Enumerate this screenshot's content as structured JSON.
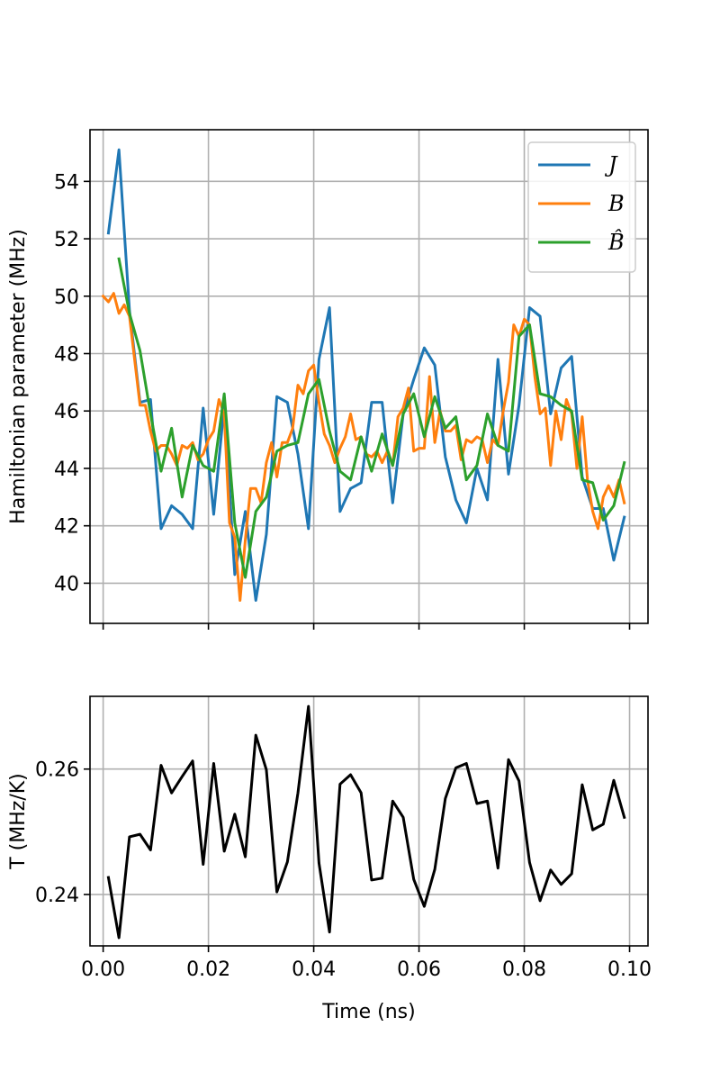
{
  "chart_data": [
    {
      "type": "line",
      "title": "",
      "xlabel": "",
      "ylabel": "Hamiltonian parameter (MHz)",
      "xlim": [
        -0.0025,
        0.1035
      ],
      "ylim": [
        38.6,
        55.8
      ],
      "xticks": [
        0.0,
        0.02,
        0.04,
        0.06,
        0.08,
        0.1
      ],
      "yticks": [
        40,
        42,
        44,
        46,
        48,
        50,
        52,
        54
      ],
      "ytick_labels": [
        "40",
        "42",
        "44",
        "46",
        "48",
        "50",
        "52",
        "54"
      ],
      "grid": true,
      "legend": {
        "position": "top-right",
        "labels": [
          "J",
          "B",
          "B̂"
        ]
      },
      "series": [
        {
          "name": "J",
          "color": "#1f77b4",
          "x": [
            0.001,
            0.003,
            0.005,
            0.007,
            0.009,
            0.011,
            0.013,
            0.015,
            0.017,
            0.019,
            0.021,
            0.023,
            0.025,
            0.027,
            0.029,
            0.031,
            0.033,
            0.035,
            0.037,
            0.039,
            0.041,
            0.043,
            0.045,
            0.047,
            0.049,
            0.051,
            0.053,
            0.055,
            0.057,
            0.059,
            0.061,
            0.063,
            0.065,
            0.067,
            0.069,
            0.071,
            0.073,
            0.075,
            0.077,
            0.079,
            0.081,
            0.083,
            0.085,
            0.087,
            0.089,
            0.091,
            0.093,
            0.095,
            0.097,
            0.099
          ],
          "values": [
            52.2,
            55.1,
            49.5,
            46.3,
            46.4,
            41.9,
            42.7,
            42.4,
            41.9,
            46.1,
            42.4,
            46.2,
            40.3,
            42.5,
            39.4,
            41.7,
            46.5,
            46.3,
            44.5,
            41.9,
            47.8,
            49.6,
            42.5,
            43.3,
            43.5,
            46.3,
            46.3,
            42.8,
            45.9,
            47.1,
            48.2,
            47.6,
            44.4,
            42.9,
            42.1,
            44.0,
            42.9,
            47.8,
            43.8,
            46.2,
            49.6,
            49.3,
            45.9,
            47.5,
            47.9,
            43.7,
            42.6,
            42.6,
            40.8,
            42.3
          ]
        },
        {
          "name": "B",
          "color": "#ff7f0e",
          "x": [
            0.0,
            0.001,
            0.002,
            0.003,
            0.004,
            0.005,
            0.007,
            0.008,
            0.009,
            0.01,
            0.011,
            0.012,
            0.013,
            0.014,
            0.015,
            0.016,
            0.017,
            0.018,
            0.019,
            0.02,
            0.021,
            0.022,
            0.023,
            0.024,
            0.025,
            0.026,
            0.027,
            0.028,
            0.029,
            0.03,
            0.031,
            0.032,
            0.033,
            0.034,
            0.035,
            0.036,
            0.037,
            0.038,
            0.039,
            0.04,
            0.041,
            0.042,
            0.043,
            0.044,
            0.045,
            0.046,
            0.047,
            0.048,
            0.049,
            0.05,
            0.051,
            0.052,
            0.053,
            0.054,
            0.055,
            0.056,
            0.057,
            0.058,
            0.059,
            0.06,
            0.061,
            0.062,
            0.063,
            0.064,
            0.065,
            0.066,
            0.067,
            0.068,
            0.069,
            0.07,
            0.071,
            0.072,
            0.073,
            0.074,
            0.075,
            0.076,
            0.077,
            0.078,
            0.079,
            0.08,
            0.081,
            0.082,
            0.083,
            0.084,
            0.085,
            0.086,
            0.087,
            0.088,
            0.089,
            0.09,
            0.091,
            0.092,
            0.093,
            0.094,
            0.095,
            0.096,
            0.097,
            0.098,
            0.099
          ],
          "values": [
            50.0,
            49.8,
            50.1,
            49.4,
            49.7,
            49.3,
            46.2,
            46.2,
            45.3,
            44.6,
            44.8,
            44.8,
            44.5,
            44.1,
            44.8,
            44.7,
            44.9,
            44.3,
            44.5,
            45.0,
            45.3,
            46.4,
            45.9,
            42.1,
            41.6,
            39.4,
            41.5,
            43.3,
            43.3,
            42.8,
            44.2,
            44.9,
            43.7,
            44.9,
            44.9,
            45.4,
            46.9,
            46.6,
            47.4,
            47.6,
            46.3,
            45.2,
            44.8,
            44.2,
            44.7,
            45.1,
            45.9,
            45.0,
            45.1,
            44.5,
            44.4,
            44.6,
            44.2,
            44.6,
            44.1,
            45.8,
            46.1,
            46.8,
            44.6,
            44.7,
            44.7,
            47.2,
            44.9,
            46.0,
            45.3,
            45.3,
            45.5,
            44.3,
            45.0,
            44.9,
            45.1,
            45.0,
            44.2,
            45.0,
            44.8,
            46.0,
            47.0,
            49.0,
            48.6,
            49.2,
            49.0,
            47.2,
            45.9,
            46.1,
            44.1,
            46.0,
            45.0,
            46.4,
            45.9,
            44.0,
            45.8,
            43.6,
            42.5,
            41.9,
            43.0,
            43.4,
            43.0,
            43.6,
            42.8
          ]
        },
        {
          "name": "B̂",
          "color": "#2ca02c",
          "x": [
            0.003,
            0.005,
            0.007,
            0.009,
            0.011,
            0.013,
            0.015,
            0.017,
            0.019,
            0.021,
            0.023,
            0.025,
            0.027,
            0.029,
            0.031,
            0.033,
            0.035,
            0.037,
            0.039,
            0.041,
            0.043,
            0.045,
            0.047,
            0.049,
            0.051,
            0.053,
            0.055,
            0.057,
            0.059,
            0.061,
            0.063,
            0.065,
            0.067,
            0.069,
            0.071,
            0.073,
            0.075,
            0.077,
            0.079,
            0.081,
            0.083,
            0.085,
            0.087,
            0.089,
            0.091,
            0.093,
            0.095,
            0.097,
            0.099
          ],
          "values": [
            51.3,
            49.4,
            48.1,
            45.9,
            43.9,
            45.4,
            43.0,
            44.8,
            44.1,
            43.9,
            46.6,
            42.1,
            40.2,
            42.5,
            43.0,
            44.6,
            44.8,
            44.9,
            46.6,
            47.1,
            45.3,
            43.9,
            43.6,
            45.1,
            43.9,
            45.2,
            44.1,
            45.9,
            46.6,
            45.1,
            46.5,
            45.4,
            45.8,
            43.6,
            44.1,
            45.9,
            44.8,
            44.6,
            48.6,
            49.0,
            46.6,
            46.5,
            46.2,
            46.0,
            43.6,
            43.5,
            42.2,
            42.7,
            44.2
          ]
        }
      ]
    },
    {
      "type": "line",
      "title": "",
      "xlabel": "Time (ns)",
      "ylabel": "T (MHz/K)",
      "xlim": [
        -0.0025,
        0.1035
      ],
      "ylim": [
        0.2318,
        0.2716
      ],
      "xticks": [
        0.0,
        0.02,
        0.04,
        0.06,
        0.08,
        0.1
      ],
      "xtick_labels": [
        "0.00",
        "0.02",
        "0.04",
        "0.06",
        "0.08",
        "0.10"
      ],
      "yticks": [
        0.24,
        0.26
      ],
      "ytick_labels": [
        "0.24",
        "0.26"
      ],
      "grid": true,
      "series": [
        {
          "color": "#000000",
          "x": [
            0.001,
            0.003,
            0.005,
            0.007,
            0.009,
            0.011,
            0.013,
            0.015,
            0.017,
            0.019,
            0.021,
            0.023,
            0.025,
            0.027,
            0.029,
            0.031,
            0.033,
            0.035,
            0.037,
            0.039,
            0.041,
            0.043,
            0.045,
            0.047,
            0.049,
            0.051,
            0.053,
            0.055,
            0.057,
            0.059,
            0.061,
            0.063,
            0.065,
            0.067,
            0.069,
            0.071,
            0.073,
            0.075,
            0.077,
            0.079,
            0.081,
            0.083,
            0.085,
            0.087,
            0.089,
            0.091,
            0.093,
            0.095,
            0.097,
            0.099
          ],
          "values": [
            0.2427,
            0.2331,
            0.2492,
            0.2496,
            0.2471,
            0.2606,
            0.2562,
            0.2588,
            0.2613,
            0.2448,
            0.2609,
            0.2469,
            0.2528,
            0.246,
            0.2654,
            0.2599,
            0.2404,
            0.2452,
            0.2562,
            0.27,
            0.245,
            0.234,
            0.2576,
            0.2591,
            0.2562,
            0.2423,
            0.2426,
            0.2549,
            0.2523,
            0.2424,
            0.2381,
            0.244,
            0.2553,
            0.2602,
            0.2609,
            0.2545,
            0.2549,
            0.2442,
            0.2615,
            0.2581,
            0.2451,
            0.239,
            0.2439,
            0.2416,
            0.2433,
            0.2575,
            0.2503,
            0.2512,
            0.2582,
            0.2523
          ]
        }
      ]
    }
  ]
}
